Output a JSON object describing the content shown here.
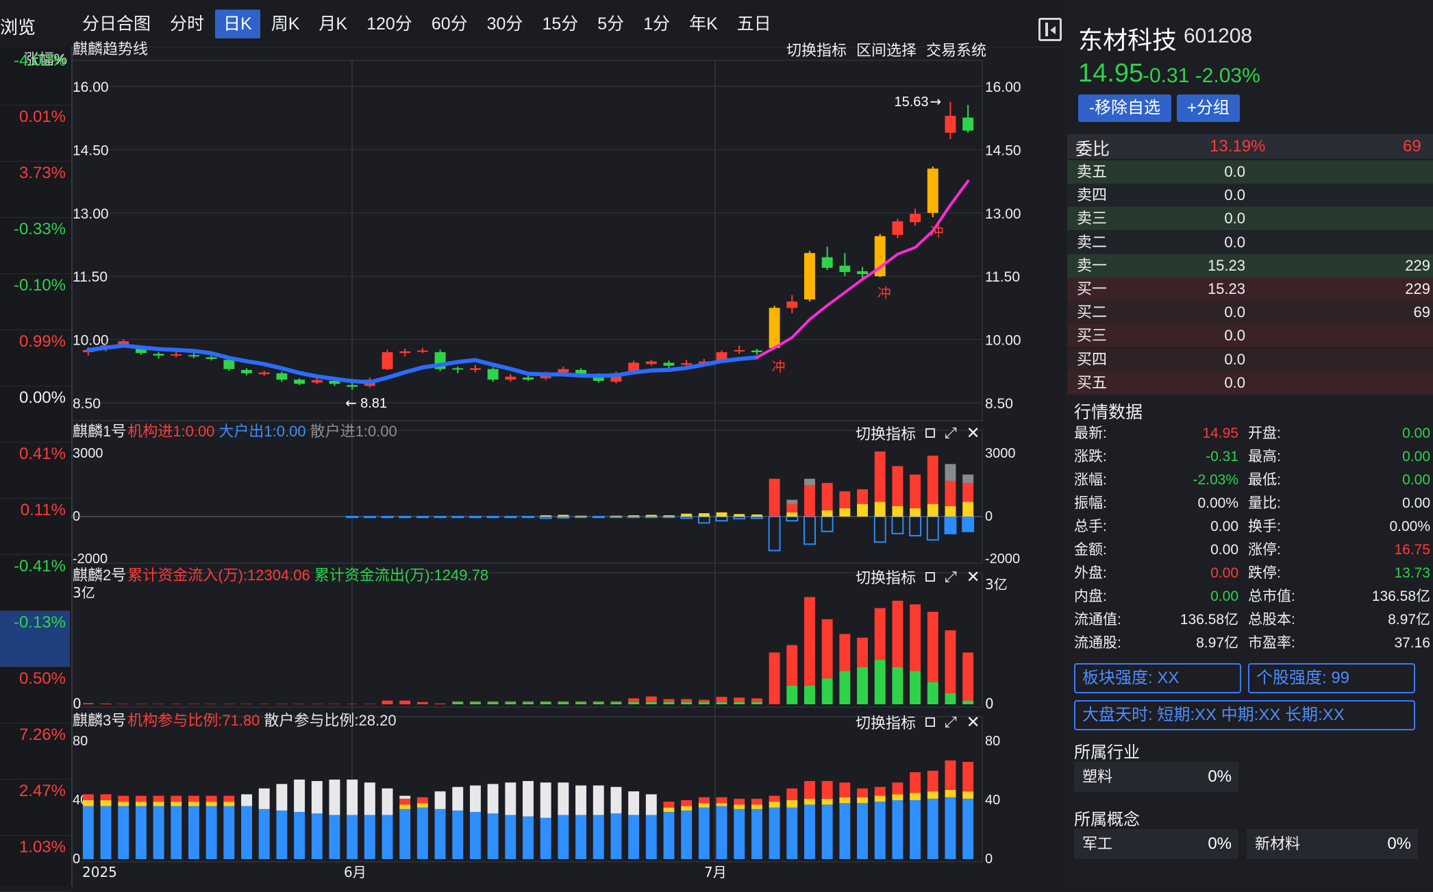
{
  "toolbar": {
    "brand": "浏览",
    "tabs": [
      "分日合图",
      "分时",
      "日K",
      "周K",
      "月K",
      "120分",
      "60分",
      "30分",
      "15分",
      "5分",
      "1分",
      "年K",
      "五日"
    ],
    "active_tab": "日K"
  },
  "pct_column": {
    "header": "涨幅%",
    "rows": [
      {
        "v": "-4.02%",
        "c": "green"
      },
      {
        "v": "0.01%",
        "c": "red"
      },
      {
        "v": "3.73%",
        "c": "red"
      },
      {
        "v": "-0.33%",
        "c": "green"
      },
      {
        "v": "-0.10%",
        "c": "green"
      },
      {
        "v": "0.99%",
        "c": "red"
      },
      {
        "v": "0.00%",
        "c": "white"
      },
      {
        "v": "0.41%",
        "c": "red"
      },
      {
        "v": "0.11%",
        "c": "red"
      },
      {
        "v": "-0.41%",
        "c": "green"
      },
      {
        "v": "-0.13%",
        "c": "green"
      },
      {
        "v": "0.50%",
        "c": "red"
      },
      {
        "v": "7.26%",
        "c": "red"
      },
      {
        "v": "2.47%",
        "c": "red"
      },
      {
        "v": "1.03%",
        "c": "red"
      }
    ],
    "selected_index": 10
  },
  "main_panel": {
    "title": "麒麟趋势线",
    "tools": [
      "切换指标",
      "区间选择",
      "交易系统"
    ],
    "max_label": "15.63",
    "min_label": "8.81",
    "signal_label": "冲"
  },
  "panel1": {
    "title": "麒麟1号",
    "items": [
      {
        "text": "机构进1:0.00",
        "color": "#ff3b3b"
      },
      {
        "text": "大户出1:0.00",
        "color": "#3f8cff"
      },
      {
        "text": "散户进1:0.00",
        "color": "#8d8d8d"
      }
    ],
    "tool": "切换指标"
  },
  "panel2": {
    "title": "麒麟2号",
    "items": [
      {
        "text": "累计资金流入(万):12304.06",
        "color": "#ff3b3b"
      },
      {
        "text": "累计资金流出(万):1249.78",
        "color": "#2fd34a"
      }
    ],
    "tool": "切换指标"
  },
  "panel3": {
    "title": "麒麟3号",
    "items": [
      {
        "text": "机构参与比例:71.80",
        "color": "#ff3b3b"
      },
      {
        "text": "散户参与比例:28.20",
        "color": "#e6e6e6"
      }
    ],
    "tool": "切换指标"
  },
  "chart_data": {
    "type": "candlestick",
    "x_labels": [
      "2025",
      "6月",
      "7月"
    ],
    "price_axis": [
      "16.00",
      "14.50",
      "13.00",
      "11.50",
      "10.00",
      "8.50"
    ],
    "price_axis_right": [
      "16.00",
      "14.50",
      "13.00",
      "11.50",
      "10.00",
      "8.50"
    ],
    "ylim": [
      8.5,
      16.0
    ],
    "panel1_axis": [
      "3000",
      "0",
      "-2000"
    ],
    "panel1_axis_right": [
      "3000",
      "0",
      "-2000"
    ],
    "panel2_axis": [
      "3亿",
      "0"
    ],
    "panel2_axis_right": [
      "3亿",
      "0"
    ],
    "panel3_axis": [
      "80",
      "40",
      "0"
    ],
    "panel3_axis_right": [
      "80",
      "40",
      "0"
    ],
    "colors": {
      "up": "#ff3b30",
      "down": "#2fd34a",
      "signal": "#ffb400",
      "trend_flat": "#2b6cff",
      "trend_up": "#ff2bd6"
    }
  },
  "stock": {
    "name": "东材科技",
    "code": "601208",
    "price": "14.95",
    "change": "-0.31 -2.03%",
    "btn_remove": "-移除自选",
    "btn_group": "+分组"
  },
  "orderbook": {
    "ratio_label": "委比",
    "ratio_value": "13.19%",
    "ratio_diff": "69",
    "rows": [
      {
        "l": "卖五",
        "p": "0.0",
        "v": ""
      },
      {
        "l": "卖四",
        "p": "0.0",
        "v": ""
      },
      {
        "l": "卖三",
        "p": "0.0",
        "v": ""
      },
      {
        "l": "卖二",
        "p": "0.0",
        "v": ""
      },
      {
        "l": "卖一",
        "p": "15.23",
        "v": "229"
      },
      {
        "l": "买一",
        "p": "15.23",
        "v": "229"
      },
      {
        "l": "买二",
        "p": "0.0",
        "v": "69"
      },
      {
        "l": "买三",
        "p": "0.0",
        "v": ""
      },
      {
        "l": "买四",
        "p": "0.0",
        "v": ""
      },
      {
        "l": "买五",
        "p": "0.0",
        "v": ""
      }
    ]
  },
  "market": {
    "header": "行情数据",
    "rows": [
      {
        "k1": "最新:",
        "v1": "14.95",
        "c1": "red",
        "k2": "开盘:",
        "v2": "0.00",
        "c2": "green"
      },
      {
        "k1": "涨跌:",
        "v1": "-0.31",
        "c1": "green",
        "k2": "最高:",
        "v2": "0.00",
        "c2": "green"
      },
      {
        "k1": "涨幅:",
        "v1": "-2.03%",
        "c1": "green",
        "k2": "最低:",
        "v2": "0.00",
        "c2": "green"
      },
      {
        "k1": "振幅:",
        "v1": "0.00%",
        "c1": "white",
        "k2": "量比:",
        "v2": "0.00",
        "c2": "white"
      },
      {
        "k1": "总手:",
        "v1": "0.00",
        "c1": "white",
        "k2": "换手:",
        "v2": "0.00%",
        "c2": "white"
      },
      {
        "k1": "金额:",
        "v1": "0.00",
        "c1": "white",
        "k2": "涨停:",
        "v2": "16.75",
        "c2": "red"
      },
      {
        "k1": "外盘:",
        "v1": "0.00",
        "c1": "red",
        "k2": "跌停:",
        "v2": "13.73",
        "c2": "green"
      },
      {
        "k1": "内盘:",
        "v1": "0.00",
        "c1": "green",
        "k2": "总市值:",
        "v2": "136.58亿",
        "c2": "white"
      },
      {
        "k1": "流通值:",
        "v1": "136.58亿",
        "c1": "white",
        "k2": "总股本:",
        "v2": "8.97亿",
        "c2": "white"
      },
      {
        "k1": "流通股:",
        "v1": "8.97亿",
        "c1": "white",
        "k2": "市盈率:",
        "v2": "37.16",
        "c2": "white"
      }
    ]
  },
  "strength": {
    "sector": "板块强度: XX",
    "stock": "个股强度: 99",
    "market_time": "大盘天时: 短期:XX 中期:XX 长期:XX"
  },
  "industry": {
    "title": "所属行业",
    "items": [
      {
        "name": "塑料",
        "pct": "0%"
      }
    ]
  },
  "concept": {
    "title": "所属概念",
    "items": [
      {
        "name": "军工",
        "pct": "0%"
      },
      {
        "name": "新材料",
        "pct": "0%"
      }
    ]
  }
}
